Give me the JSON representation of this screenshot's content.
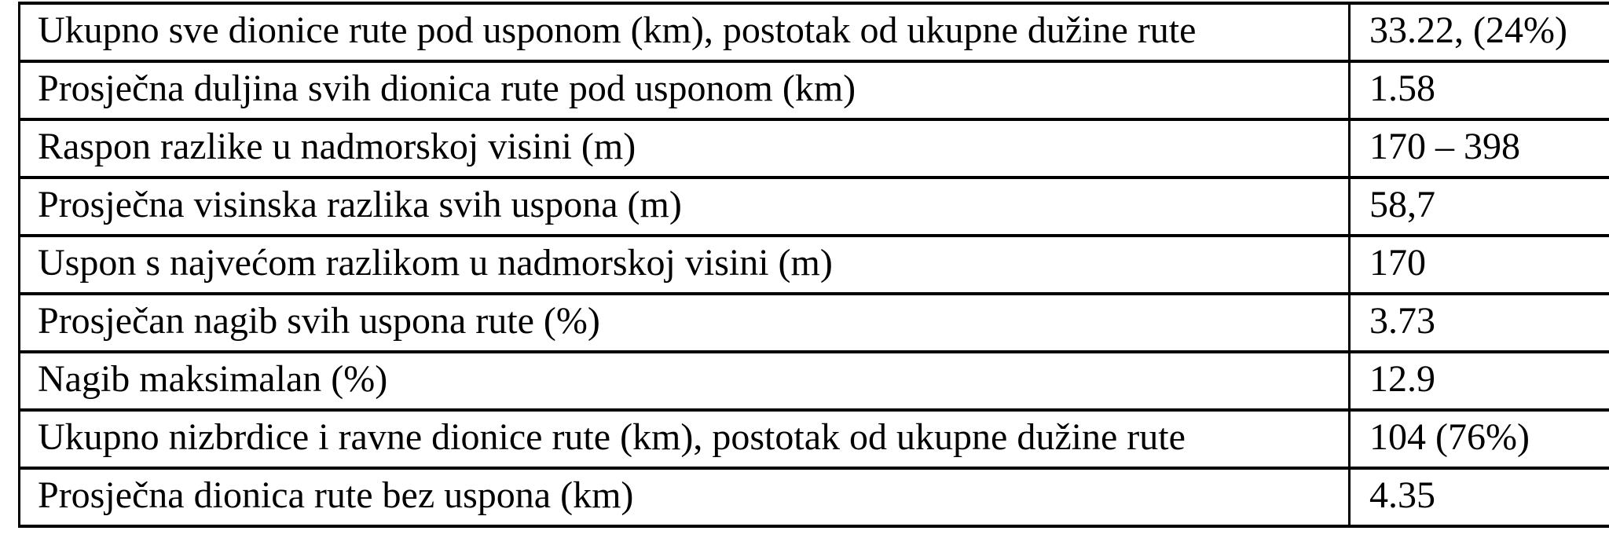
{
  "colors": {
    "background": "#ffffff",
    "border": "#000000",
    "text": "#000000"
  },
  "table": {
    "description": "route-climb-statistics-table",
    "columns": [
      "metric",
      "value"
    ],
    "rows": [
      {
        "label": "Ukupno sve dionice rute pod usponom (km), postotak od ukupne dužine rute",
        "value": "33.22, (24%)"
      },
      {
        "label": "Prosječna duljina svih dionica rute pod usponom (km)",
        "value": "1.58"
      },
      {
        "label": "Raspon razlike u nadmorskoj visini (m)",
        "value": "170 – 398"
      },
      {
        "label": "Prosječna visinska razlika svih uspona (m)",
        "value": "58,7"
      },
      {
        "label": "Uspon s najvećom razlikom u nadmorskoj visini (m)",
        "value": "170"
      },
      {
        "label": "Prosječan nagib svih uspona rute (%)",
        "value": "3.73"
      },
      {
        "label": "Nagib maksimalan (%)",
        "value": "12.9"
      },
      {
        "label": "Ukupno nizbrdice i ravne dionice rute (km), postotak od ukupne dužine rute",
        "value": "104 (76%)"
      },
      {
        "label": "Prosječna dionica rute bez uspona (km)",
        "value": "4.35"
      }
    ]
  }
}
